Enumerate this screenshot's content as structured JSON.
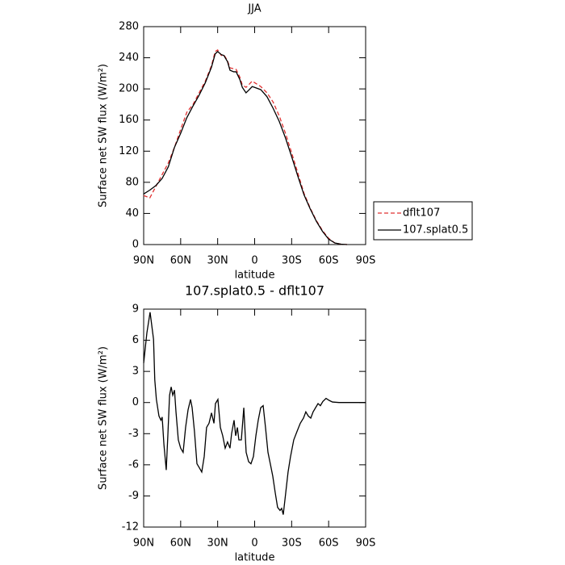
{
  "chart_data": [
    {
      "type": "line",
      "title": "JJA",
      "xlabel": "latitude",
      "ylabel": "Surface net SW flux (W/m²)",
      "x": [
        90,
        85,
        80,
        75,
        70,
        65,
        60,
        55,
        50,
        45,
        40,
        35,
        32,
        30,
        27,
        25,
        22,
        20,
        17,
        15,
        12,
        10,
        7,
        5,
        2,
        0,
        -5,
        -10,
        -15,
        -20,
        -25,
        -30,
        -35,
        -40,
        -45,
        -50,
        -55,
        -60,
        -65,
        -70,
        -75
      ],
      "series": [
        {
          "name": "dflt107",
          "color": "#e03030",
          "linestyle": "dashed",
          "values": [
            63,
            60,
            75,
            90,
            105,
            125,
            148,
            170,
            180,
            195,
            210,
            230,
            248,
            250,
            243,
            244,
            236,
            227,
            226,
            225,
            215,
            205,
            202,
            205,
            210,
            208,
            203,
            195,
            183,
            165,
            143,
            118,
            92,
            66,
            47,
            31,
            18,
            8,
            2,
            0.5,
            0
          ]
        },
        {
          "name": "107.splat0.5",
          "color": "#000000",
          "linestyle": "solid",
          "values": [
            65,
            70,
            76,
            85,
            100,
            125,
            143,
            163,
            178,
            192,
            208,
            228,
            245,
            248,
            244,
            243,
            235,
            224,
            222,
            222,
            212,
            202,
            195,
            198,
            203,
            202,
            199,
            190,
            175,
            158,
            137,
            113,
            88,
            64,
            46,
            30,
            17,
            7,
            2,
            0.5,
            0
          ]
        }
      ],
      "xlim": [
        90,
        -90
      ],
      "xticks": [
        {
          "value": 90,
          "label": "90N"
        },
        {
          "value": 60,
          "label": "60N"
        },
        {
          "value": 30,
          "label": "30N"
        },
        0,
        {
          "value": -30,
          "label": "30S"
        },
        {
          "value": -60,
          "label": "60S"
        },
        {
          "value": -90,
          "label": "90S"
        }
      ],
      "ylim": [
        0,
        280
      ],
      "yticks": [
        0,
        40,
        80,
        120,
        160,
        200,
        240,
        280
      ],
      "legend": "right"
    },
    {
      "type": "line",
      "title": "107.splat0.5 - dflt107",
      "xlabel": "latitude",
      "ylabel": "Surface net SW flux (W/m²)",
      "x": [
        90,
        87.4,
        84.8,
        82,
        81,
        79.7,
        77.6,
        76,
        75,
        73.6,
        71.7,
        70.4,
        69,
        67.7,
        66.4,
        65,
        63.8,
        61.9,
        60,
        58,
        56,
        54,
        52,
        50.7,
        48.8,
        46.8,
        44.8,
        42.9,
        40.9,
        39,
        37,
        35,
        33,
        31.8,
        29.8,
        27.8,
        25.9,
        23.9,
        22,
        20,
        18.7,
        16.7,
        15.4,
        14,
        12.8,
        10.8,
        8.8,
        6.9,
        4.9,
        3,
        1,
        -1,
        -2.9,
        -4.9,
        -6.9,
        -8.8,
        -10.8,
        -12.7,
        -14.7,
        -16.7,
        -18.6,
        -20.6,
        -21.9,
        -23.2,
        -25.2,
        -27.1,
        -29.1,
        -31.7,
        -34.3,
        -37,
        -39.6,
        -41.5,
        -43.5,
        -45.5,
        -47.4,
        -49.4,
        -51.4,
        -53.3,
        -55.3,
        -57.9,
        -60.5,
        -63.1,
        -68.4,
        -90
      ],
      "series": [
        {
          "color": "#000000",
          "linestyle": "solid",
          "values": [
            3.8,
            6.7,
            8.7,
            6.1,
            2.2,
            0.3,
            -1.3,
            -1.7,
            -1.4,
            -4,
            -6.5,
            -3.2,
            0.7,
            1.5,
            0.7,
            1.2,
            -0.9,
            -3.6,
            -4.4,
            -4.8,
            -2.4,
            -0.7,
            0.3,
            -0.5,
            -2.8,
            -5.9,
            -6.3,
            -6.7,
            -5.2,
            -2.4,
            -2,
            -1,
            -2,
            -0.1,
            0.3,
            -2.4,
            -3.2,
            -4.4,
            -3.8,
            -4.4,
            -3,
            -1.7,
            -3.2,
            -2.4,
            -3.6,
            -3.6,
            -0.5,
            -4.8,
            -5.7,
            -5.9,
            -5.2,
            -3.2,
            -1.7,
            -0.5,
            -0.3,
            -2.4,
            -4.8,
            -5.9,
            -7.1,
            -8.7,
            -10.1,
            -10.4,
            -10.2,
            -10.8,
            -8.7,
            -6.7,
            -5.2,
            -3.6,
            -2.8,
            -2,
            -1.5,
            -0.9,
            -1.3,
            -1.5,
            -0.9,
            -0.5,
            -0.1,
            -0.3,
            0.1,
            0.4,
            0.2,
            0.05,
            0,
            0
          ]
        }
      ],
      "xlim": [
        90,
        -90
      ],
      "xticks": [
        {
          "value": 90,
          "label": "90N"
        },
        {
          "value": 60,
          "label": "60N"
        },
        {
          "value": 30,
          "label": "30N"
        },
        0,
        {
          "value": -30,
          "label": "30S"
        },
        {
          "value": -60,
          "label": "60S"
        },
        {
          "value": -90,
          "label": "90S"
        }
      ],
      "ylim": [
        -12,
        9
      ],
      "yticks": [
        -12,
        -9,
        -6,
        -3,
        0,
        3,
        6,
        9
      ]
    }
  ]
}
